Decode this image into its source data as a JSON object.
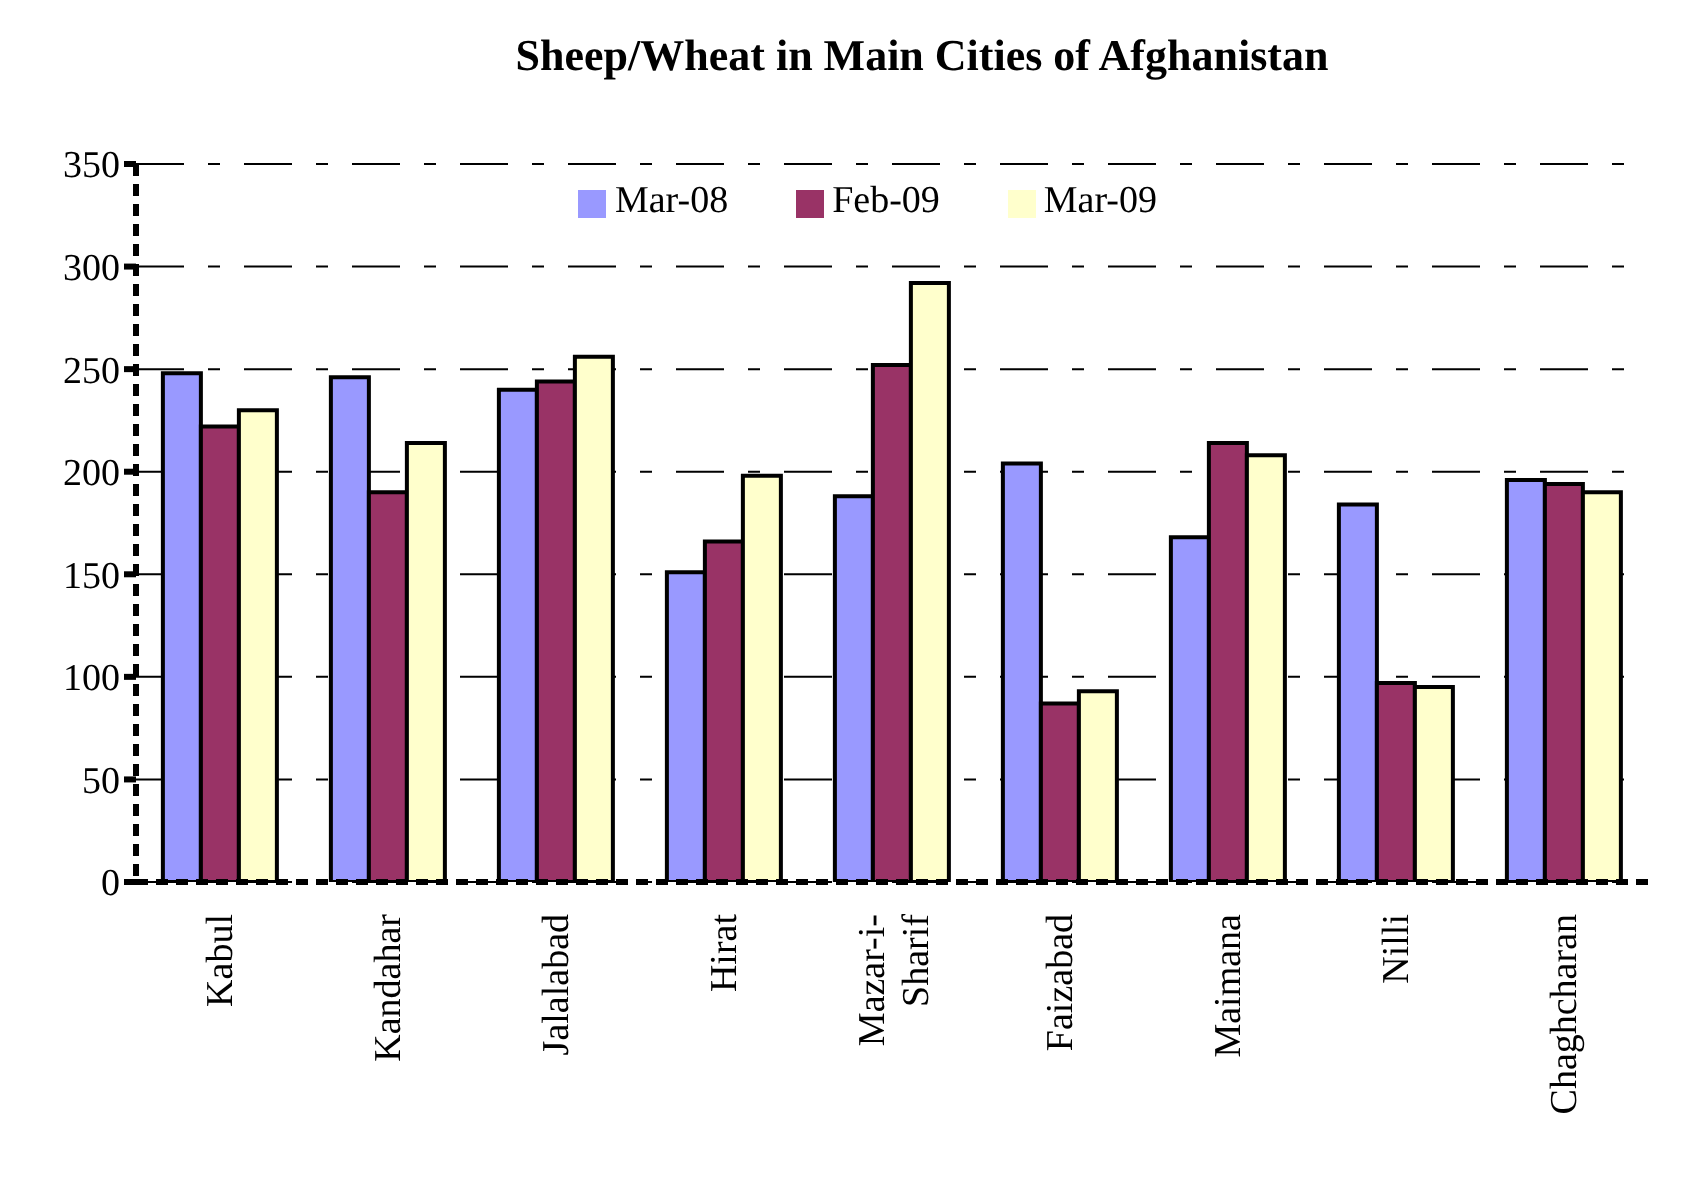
{
  "chart_data": {
    "type": "bar",
    "title": "Sheep/Wheat in Main Cities of Afghanistan",
    "categories": [
      "Kabul",
      "Kandahar",
      "Jalalabad",
      "Hirat",
      "Mazar-i-Sharif",
      "Faizabad",
      "Maimana",
      "Nilli",
      "Chaghcharan"
    ],
    "series": [
      {
        "name": "Mar-08",
        "color": "#9999ff",
        "values": [
          248,
          246,
          240,
          151,
          188,
          204,
          168,
          184,
          196
        ]
      },
      {
        "name": "Feb-09",
        "color": "#993366",
        "values": [
          222,
          190,
          244,
          166,
          252,
          87,
          214,
          97,
          194
        ]
      },
      {
        "name": "Mar-09",
        "color": "#ffffcc",
        "values": [
          230,
          214,
          256,
          198,
          292,
          93,
          208,
          95,
          190
        ]
      }
    ],
    "ylim": [
      0,
      350
    ],
    "yticks": [
      0,
      50,
      100,
      150,
      200,
      250,
      300,
      350
    ],
    "grid": "y",
    "legend": "top"
  }
}
